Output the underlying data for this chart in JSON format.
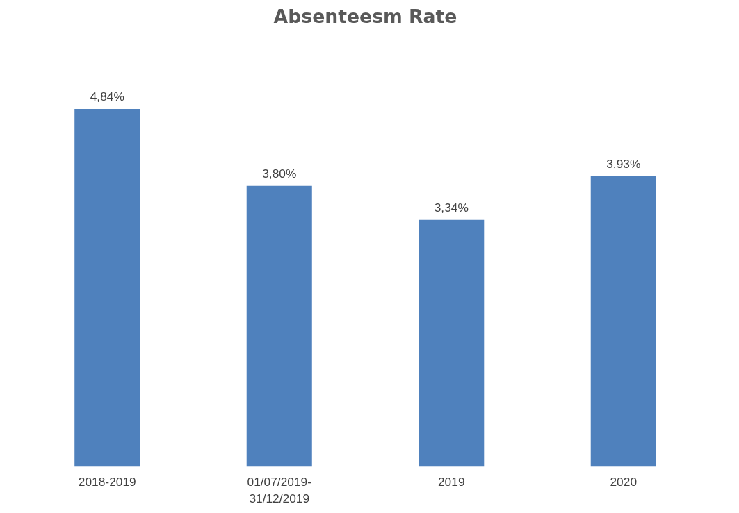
{
  "chart_data": {
    "type": "bar",
    "title": "Absenteesm Rate",
    "categories": [
      "2018-2019",
      "01/07/2019-\n31/12/2019",
      "2019",
      "2020"
    ],
    "values": [
      4.84,
      3.8,
      3.34,
      3.93
    ],
    "value_labels": [
      "4,84%",
      "3,80%",
      "3,34%",
      "3,93%"
    ],
    "color": "#4f81bd",
    "grid": false
  }
}
